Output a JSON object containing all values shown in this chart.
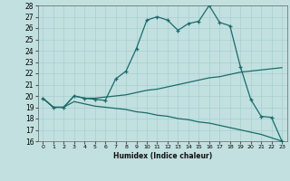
{
  "title": "",
  "xlabel": "Humidex (Indice chaleur)",
  "ylabel": "",
  "bg_color": "#c2e0e0",
  "grid_color": "#a8cece",
  "line_color": "#1a6b6b",
  "xlim": [
    -0.5,
    23.5
  ],
  "ylim": [
    16,
    28
  ],
  "xticks": [
    0,
    1,
    2,
    3,
    4,
    5,
    6,
    7,
    8,
    9,
    10,
    11,
    12,
    13,
    14,
    15,
    16,
    17,
    18,
    19,
    20,
    21,
    22,
    23
  ],
  "yticks": [
    16,
    17,
    18,
    19,
    20,
    21,
    22,
    23,
    24,
    25,
    26,
    27,
    28
  ],
  "curve1_x": [
    0,
    1,
    2,
    3,
    4,
    5,
    6,
    7,
    8,
    9,
    10,
    11,
    12,
    13,
    14,
    15,
    16,
    17,
    18,
    19,
    20,
    21,
    22,
    23
  ],
  "curve1_y": [
    19.8,
    19.0,
    19.0,
    20.0,
    19.8,
    19.7,
    19.6,
    21.5,
    22.2,
    24.2,
    26.7,
    27.0,
    26.7,
    25.8,
    26.4,
    26.6,
    28.0,
    26.5,
    26.2,
    22.6,
    19.7,
    18.2,
    18.1,
    16.0
  ],
  "curve2_x": [
    0,
    1,
    2,
    3,
    4,
    5,
    6,
    7,
    8,
    9,
    10,
    11,
    12,
    13,
    14,
    15,
    16,
    17,
    18,
    19,
    20,
    21,
    22,
    23
  ],
  "curve2_y": [
    19.8,
    19.0,
    19.0,
    20.0,
    19.8,
    19.8,
    19.9,
    20.0,
    20.1,
    20.3,
    20.5,
    20.6,
    20.8,
    21.0,
    21.2,
    21.4,
    21.6,
    21.7,
    21.9,
    22.1,
    22.2,
    22.3,
    22.4,
    22.5
  ],
  "curve3_x": [
    0,
    1,
    2,
    3,
    4,
    5,
    6,
    7,
    8,
    9,
    10,
    11,
    12,
    13,
    14,
    15,
    16,
    17,
    18,
    19,
    20,
    21,
    22,
    23
  ],
  "curve3_y": [
    19.8,
    19.0,
    19.0,
    19.5,
    19.3,
    19.1,
    19.0,
    18.9,
    18.8,
    18.6,
    18.5,
    18.3,
    18.2,
    18.0,
    17.9,
    17.7,
    17.6,
    17.4,
    17.2,
    17.0,
    16.8,
    16.6,
    16.3,
    16.0
  ]
}
